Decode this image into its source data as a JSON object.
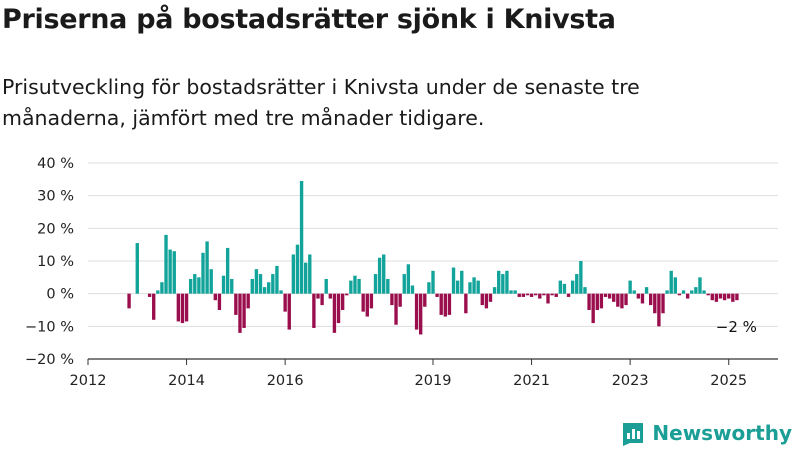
{
  "title": "Priserna på bostadsrätter sjönk i Knivsta",
  "subtitle": "Prisutveckling för bostadsrätter i Knivsta under de senaste tre månaderna, jämfört med tre månader tidigare.",
  "brand": {
    "name": "Newsworthy",
    "icon": "newsworthy-logo-icon",
    "color": "#1a9e96"
  },
  "colors": {
    "positive": "#12a49a",
    "negative": "#9b0e4d",
    "grid": "#dddddd",
    "axis": "#333333"
  },
  "chart_data": {
    "type": "bar",
    "x_axis": {
      "type": "date",
      "ticks": [
        "2012",
        "2014",
        "2016",
        "2019",
        "2021",
        "2023",
        "2025"
      ],
      "range": [
        "2012-01",
        "2025-12"
      ]
    },
    "y_axis": {
      "unit": "%",
      "ylim": [
        -20,
        40
      ],
      "ticks": [
        "40 %",
        "30 %",
        "20 %",
        "10 %",
        "0 %",
        "−10 %",
        "−20 %"
      ],
      "tick_values": [
        40,
        30,
        20,
        10,
        0,
        -10,
        -20
      ]
    },
    "grid": true,
    "end_label": "−2 %",
    "series": [
      {
        "values": [
          {
            "x": "2012-11",
            "y": -4.5
          },
          {
            "x": "2013-01",
            "y": 15.5
          },
          {
            "x": "2013-04",
            "y": -1
          },
          {
            "x": "2013-05",
            "y": -8
          },
          {
            "x": "2013-06",
            "y": 1
          },
          {
            "x": "2013-07",
            "y": 3.5
          },
          {
            "x": "2013-08",
            "y": 18
          },
          {
            "x": "2013-09",
            "y": 13.5
          },
          {
            "x": "2013-10",
            "y": 13
          },
          {
            "x": "2013-11",
            "y": -8.5
          },
          {
            "x": "2013-12",
            "y": -9
          },
          {
            "x": "2014-01",
            "y": -8.5
          },
          {
            "x": "2014-02",
            "y": 4.5
          },
          {
            "x": "2014-03",
            "y": 6
          },
          {
            "x": "2014-04",
            "y": 5
          },
          {
            "x": "2014-05",
            "y": 12.5
          },
          {
            "x": "2014-06",
            "y": 16
          },
          {
            "x": "2014-07",
            "y": 7.5
          },
          {
            "x": "2014-08",
            "y": -2
          },
          {
            "x": "2014-09",
            "y": -5
          },
          {
            "x": "2014-10",
            "y": 5.5
          },
          {
            "x": "2014-11",
            "y": 14
          },
          {
            "x": "2014-12",
            "y": 4.5
          },
          {
            "x": "2015-01",
            "y": -6.5
          },
          {
            "x": "2015-02",
            "y": -12
          },
          {
            "x": "2015-03",
            "y": -10.5
          },
          {
            "x": "2015-04",
            "y": -4.5
          },
          {
            "x": "2015-05",
            "y": 4.5
          },
          {
            "x": "2015-06",
            "y": 7.5
          },
          {
            "x": "2015-07",
            "y": 6
          },
          {
            "x": "2015-08",
            "y": 2
          },
          {
            "x": "2015-09",
            "y": 3.5
          },
          {
            "x": "2015-10",
            "y": 6
          },
          {
            "x": "2015-11",
            "y": 8.5
          },
          {
            "x": "2015-12",
            "y": 1
          },
          {
            "x": "2016-01",
            "y": -5.5
          },
          {
            "x": "2016-02",
            "y": -11
          },
          {
            "x": "2016-03",
            "y": 12
          },
          {
            "x": "2016-04",
            "y": 15
          },
          {
            "x": "2016-05",
            "y": 34.5
          },
          {
            "x": "2016-06",
            "y": 9.5
          },
          {
            "x": "2016-07",
            "y": 12
          },
          {
            "x": "2016-08",
            "y": -10.5
          },
          {
            "x": "2016-09",
            "y": -1.5
          },
          {
            "x": "2016-10",
            "y": -3.5
          },
          {
            "x": "2016-11",
            "y": 4.5
          },
          {
            "x": "2016-12",
            "y": -1.5
          },
          {
            "x": "2017-01",
            "y": -12
          },
          {
            "x": "2017-02",
            "y": -9
          },
          {
            "x": "2017-03",
            "y": -5
          },
          {
            "x": "2017-04",
            "y": -0.5
          },
          {
            "x": "2017-05",
            "y": 4
          },
          {
            "x": "2017-06",
            "y": 5.5
          },
          {
            "x": "2017-07",
            "y": 4.5
          },
          {
            "x": "2017-08",
            "y": -5.5
          },
          {
            "x": "2017-09",
            "y": -7
          },
          {
            "x": "2017-10",
            "y": -4.5
          },
          {
            "x": "2017-11",
            "y": 6
          },
          {
            "x": "2017-12",
            "y": 11
          },
          {
            "x": "2018-01",
            "y": 12
          },
          {
            "x": "2018-02",
            "y": 4.5
          },
          {
            "x": "2018-03",
            "y": -3.5
          },
          {
            "x": "2018-04",
            "y": -9.5
          },
          {
            "x": "2018-05",
            "y": -4
          },
          {
            "x": "2018-06",
            "y": 6
          },
          {
            "x": "2018-07",
            "y": 9
          },
          {
            "x": "2018-08",
            "y": 2.5
          },
          {
            "x": "2018-09",
            "y": -11
          },
          {
            "x": "2018-10",
            "y": -12.5
          },
          {
            "x": "2018-11",
            "y": -4
          },
          {
            "x": "2018-12",
            "y": 3.5
          },
          {
            "x": "2019-01",
            "y": 7
          },
          {
            "x": "2019-02",
            "y": -1
          },
          {
            "x": "2019-03",
            "y": -6.5
          },
          {
            "x": "2019-04",
            "y": -7
          },
          {
            "x": "2019-05",
            "y": -6.5
          },
          {
            "x": "2019-06",
            "y": 8
          },
          {
            "x": "2019-07",
            "y": 4
          },
          {
            "x": "2019-08",
            "y": 7
          },
          {
            "x": "2019-09",
            "y": -6
          },
          {
            "x": "2019-10",
            "y": 3.5
          },
          {
            "x": "2019-11",
            "y": 5
          },
          {
            "x": "2019-12",
            "y": 4
          },
          {
            "x": "2020-01",
            "y": -3.5
          },
          {
            "x": "2020-02",
            "y": -4.5
          },
          {
            "x": "2020-03",
            "y": -2.5
          },
          {
            "x": "2020-04",
            "y": 2
          },
          {
            "x": "2020-05",
            "y": 7
          },
          {
            "x": "2020-06",
            "y": 6
          },
          {
            "x": "2020-07",
            "y": 7
          },
          {
            "x": "2020-08",
            "y": 1
          },
          {
            "x": "2020-09",
            "y": 1
          },
          {
            "x": "2020-10",
            "y": -1
          },
          {
            "x": "2020-11",
            "y": -1
          },
          {
            "x": "2020-12",
            "y": -0.5
          },
          {
            "x": "2021-01",
            "y": -1
          },
          {
            "x": "2021-02",
            "y": -0.5
          },
          {
            "x": "2021-03",
            "y": -1.5
          },
          {
            "x": "2021-04",
            "y": -0.5
          },
          {
            "x": "2021-05",
            "y": -3
          },
          {
            "x": "2021-06",
            "y": -0.5
          },
          {
            "x": "2021-07",
            "y": -1
          },
          {
            "x": "2021-08",
            "y": 4
          },
          {
            "x": "2021-09",
            "y": 3
          },
          {
            "x": "2021-10",
            "y": -1
          },
          {
            "x": "2021-11",
            "y": 4
          },
          {
            "x": "2021-12",
            "y": 6
          },
          {
            "x": "2022-01",
            "y": 10
          },
          {
            "x": "2022-02",
            "y": 2
          },
          {
            "x": "2022-03",
            "y": -5
          },
          {
            "x": "2022-04",
            "y": -9
          },
          {
            "x": "2022-05",
            "y": -5
          },
          {
            "x": "2022-06",
            "y": -4.5
          },
          {
            "x": "2022-07",
            "y": -1
          },
          {
            "x": "2022-08",
            "y": -1.5
          },
          {
            "x": "2022-09",
            "y": -2.5
          },
          {
            "x": "2022-10",
            "y": -4
          },
          {
            "x": "2022-11",
            "y": -4.5
          },
          {
            "x": "2022-12",
            "y": -3.5
          },
          {
            "x": "2023-01",
            "y": 4
          },
          {
            "x": "2023-02",
            "y": 1
          },
          {
            "x": "2023-03",
            "y": -1.5
          },
          {
            "x": "2023-04",
            "y": -3
          },
          {
            "x": "2023-05",
            "y": 2
          },
          {
            "x": "2023-06",
            "y": -3.5
          },
          {
            "x": "2023-07",
            "y": -6
          },
          {
            "x": "2023-08",
            "y": -10
          },
          {
            "x": "2023-09",
            "y": -6
          },
          {
            "x": "2023-10",
            "y": 1
          },
          {
            "x": "2023-11",
            "y": 7
          },
          {
            "x": "2023-12",
            "y": 5
          },
          {
            "x": "2024-01",
            "y": -0.5
          },
          {
            "x": "2024-02",
            "y": 1
          },
          {
            "x": "2024-03",
            "y": -1.5
          },
          {
            "x": "2024-04",
            "y": 1
          },
          {
            "x": "2024-05",
            "y": 2
          },
          {
            "x": "2024-06",
            "y": 5
          },
          {
            "x": "2024-07",
            "y": 1
          },
          {
            "x": "2024-08",
            "y": -0.5
          },
          {
            "x": "2024-09",
            "y": -2
          },
          {
            "x": "2024-10",
            "y": -2.5
          },
          {
            "x": "2024-11",
            "y": -1.5
          },
          {
            "x": "2024-12",
            "y": -2
          },
          {
            "x": "2025-01",
            "y": -1.5
          },
          {
            "x": "2025-02",
            "y": -2.5
          },
          {
            "x": "2025-03",
            "y": -2
          }
        ]
      }
    ]
  }
}
